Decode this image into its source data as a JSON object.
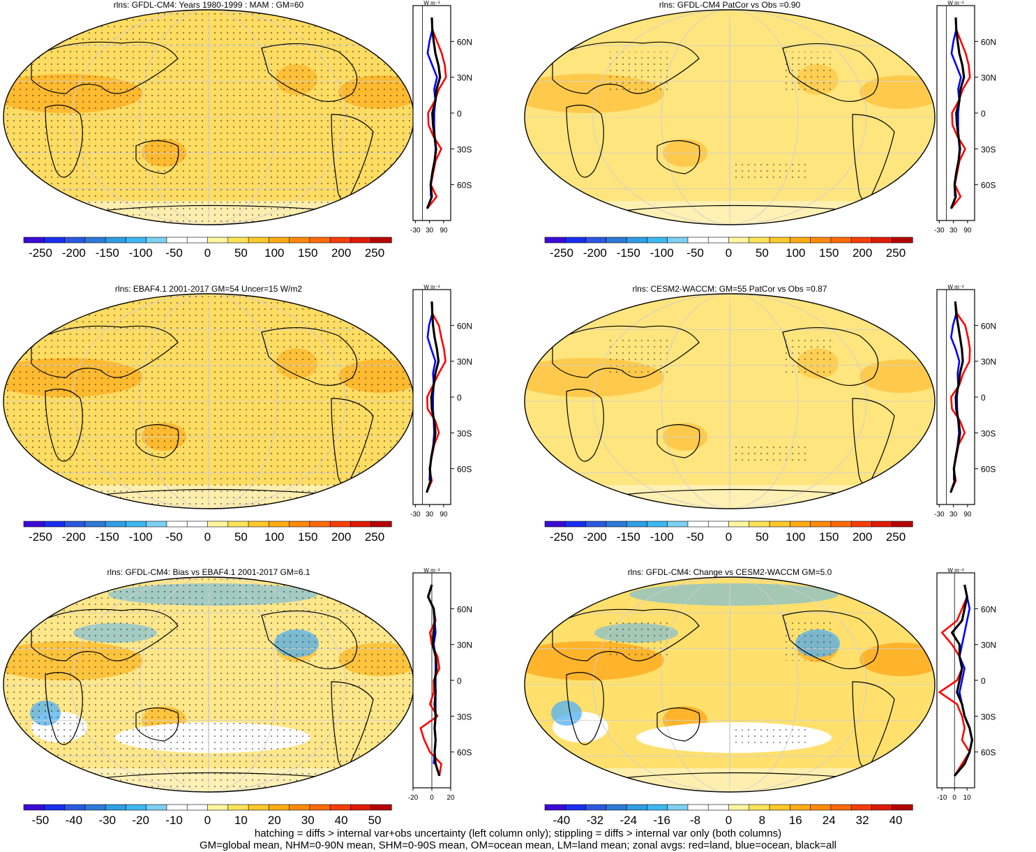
{
  "figure": {
    "footnotes": [
      "hatching = diffs > internal var+obs uncertainty (left column only); stippling = diffs > internal var only (both columns)",
      "GM=global mean, NHM=0-90N mean, SHM=0-90S mean, OM=ocean mean, LM=land mean; zonal avgs: red=land, blue=ocean, black=all"
    ],
    "zonal_units": "W m⁻²",
    "lat_labels": [
      "60N",
      "30N",
      "0",
      "30S",
      "60S"
    ],
    "colors": {
      "land": "#ff0000",
      "ocean": "#0000ff",
      "all": "#000000"
    }
  },
  "chart_data": [
    {
      "type": "heatmap",
      "title": "rlns: GFDL-CM4: Years 1980-1999 : MAM : GM=60",
      "colorbar_labels": [
        "-250",
        "-200",
        "-150",
        "-100",
        "-50",
        "0",
        "50",
        "100",
        "150",
        "200",
        "250"
      ],
      "colorbar_range": [
        -275,
        275
      ],
      "zonal": {
        "xlim": [
          -40,
          120
        ],
        "xticks": [
          -30,
          30,
          90
        ],
        "lat": [
          80,
          70,
          60,
          50,
          40,
          30,
          20,
          10,
          0,
          -10,
          -20,
          -30,
          -40,
          -50,
          -60,
          -70,
          -80
        ],
        "land": [
          40,
          42,
          62,
          82,
          95,
          100,
          70,
          52,
          24,
          26,
          48,
          80,
          56,
          46,
          36,
          60,
          20
        ],
        "ocean": [
          40,
          42,
          30,
          22,
          42,
          62,
          50,
          55,
          50,
          50,
          52,
          56,
          52,
          42,
          35,
          36,
          null
        ],
        "all": [
          40,
          42,
          48,
          55,
          68,
          75,
          60,
          55,
          42,
          45,
          52,
          58,
          52,
          42,
          35,
          40,
          20
        ]
      }
    },
    {
      "type": "heatmap",
      "title": "rlns: GFDL-CM4 PatCor vs Obs =0.90",
      "colorbar_labels": [
        "-250",
        "-200",
        "-150",
        "-100",
        "-50",
        "0",
        "50",
        "100",
        "150",
        "200",
        "250"
      ],
      "colorbar_range": [
        -275,
        275
      ],
      "zonal": {
        "xlim": [
          -40,
          120
        ],
        "xticks": [
          -30,
          30,
          90
        ],
        "lat": [
          80,
          70,
          60,
          50,
          40,
          30,
          20,
          10,
          0,
          -10,
          -20,
          -30,
          -40,
          -50,
          -60,
          -70,
          -80
        ],
        "land": [
          40,
          42,
          62,
          82,
          95,
          100,
          70,
          52,
          24,
          26,
          48,
          80,
          56,
          46,
          36,
          60,
          20
        ],
        "ocean": [
          40,
          42,
          30,
          22,
          42,
          62,
          50,
          55,
          50,
          50,
          52,
          56,
          52,
          42,
          35,
          36,
          null
        ],
        "all": [
          40,
          42,
          48,
          55,
          68,
          75,
          60,
          55,
          42,
          45,
          52,
          58,
          52,
          42,
          35,
          40,
          20
        ]
      }
    },
    {
      "type": "heatmap",
      "title": "rlns: EBAF4.1 2001-2017 GM=54 Uncer=15 W/m2",
      "colorbar_labels": [
        "-250",
        "-200",
        "-150",
        "-100",
        "-50",
        "0",
        "50",
        "100",
        "150",
        "200",
        "250"
      ],
      "colorbar_range": [
        -275,
        275
      ],
      "zonal": {
        "xlim": [
          -40,
          120
        ],
        "xticks": [
          -30,
          30,
          90
        ],
        "lat": [
          80,
          70,
          60,
          50,
          40,
          30,
          20,
          10,
          0,
          -10,
          -20,
          -30,
          -40,
          -50,
          -60,
          -70,
          -80
        ],
        "land": [
          40,
          42,
          70,
          80,
          92,
          98,
          70,
          45,
          20,
          22,
          55,
          70,
          50,
          40,
          30,
          40,
          18
        ],
        "ocean": [
          40,
          42,
          28,
          22,
          38,
          55,
          45,
          48,
          45,
          45,
          48,
          50,
          46,
          38,
          32,
          30,
          null
        ],
        "all": [
          40,
          42,
          45,
          52,
          62,
          68,
          55,
          48,
          38,
          40,
          50,
          55,
          48,
          38,
          32,
          35,
          18
        ]
      }
    },
    {
      "type": "heatmap",
      "title": "rlns: CESM2-WACCM: GM=55 PatCor vs Obs =0.87",
      "colorbar_labels": [
        "-250",
        "-200",
        "-150",
        "-100",
        "-50",
        "0",
        "50",
        "100",
        "150",
        "200",
        "250"
      ],
      "colorbar_range": [
        -275,
        275
      ],
      "zonal": {
        "xlim": [
          -40,
          120
        ],
        "xticks": [
          -30,
          30,
          90
        ],
        "lat": [
          80,
          70,
          60,
          50,
          40,
          30,
          20,
          10,
          0,
          -10,
          -20,
          -30,
          -40,
          -50,
          -60,
          -70,
          -80
        ],
        "land": [
          38,
          45,
          80,
          92,
          100,
          98,
          72,
          55,
          20,
          24,
          58,
          78,
          52,
          42,
          32,
          40,
          18
        ],
        "ocean": [
          38,
          42,
          28,
          20,
          40,
          55,
          48,
          50,
          45,
          46,
          50,
          54,
          48,
          40,
          32,
          32,
          null
        ],
        "all": [
          38,
          42,
          50,
          58,
          66,
          70,
          58,
          52,
          40,
          42,
          52,
          58,
          50,
          40,
          32,
          36,
          18
        ]
      }
    },
    {
      "type": "heatmap",
      "title": "rlns: GFDL-CM4: Bias vs EBAF4.1 2001-2017 GM=6.1",
      "colorbar_labels": [
        "-50",
        "-40",
        "-30",
        "-20",
        "-10",
        "0",
        "10",
        "20",
        "30",
        "40",
        "50"
      ],
      "colorbar_range": [
        -55,
        55
      ],
      "zonal": {
        "xlim": [
          -20,
          20
        ],
        "xticks": [
          -20,
          0,
          20
        ],
        "lat": [
          80,
          70,
          60,
          50,
          40,
          30,
          20,
          10,
          0,
          -10,
          -20,
          -30,
          -40,
          -50,
          -60,
          -70,
          -80
        ],
        "land": [
          0,
          -4,
          2,
          4,
          -2,
          0,
          6,
          8,
          2,
          2,
          -2,
          6,
          -12,
          -8,
          -2,
          10,
          8
        ],
        "ocean": [
          0,
          -4,
          2,
          3,
          4,
          2,
          4,
          4,
          4,
          4,
          4,
          4,
          3,
          4,
          3,
          2,
          null
        ],
        "all": [
          0,
          -4,
          2,
          3,
          2,
          1,
          4,
          5,
          3,
          4,
          3,
          4,
          3,
          4,
          3,
          4,
          8
        ]
      }
    },
    {
      "type": "heatmap",
      "title": "rlns: GFDL-CM4: Change vs CESM2-WACCM GM=5.0",
      "colorbar_labels": [
        "-40",
        "-32",
        "-24",
        "-16",
        "-8",
        "0",
        "8",
        "16",
        "24",
        "32",
        "40"
      ],
      "colorbar_range": [
        -44,
        44
      ],
      "zonal": {
        "xlim": [
          -14,
          16
        ],
        "xticks": [
          -10,
          0,
          10
        ],
        "lat": [
          80,
          70,
          60,
          50,
          40,
          30,
          20,
          10,
          0,
          -10,
          -20,
          -30,
          -40,
          -50,
          -60,
          -70,
          -80
        ],
        "land": [
          8,
          10,
          6,
          2,
          -10,
          -2,
          4,
          6,
          2,
          -12,
          2,
          6,
          8,
          6,
          12,
          6,
          0
        ],
        "ocean": [
          8,
          10,
          12,
          10,
          8,
          6,
          4,
          8,
          6,
          4,
          6,
          8,
          12,
          14,
          12,
          8,
          null
        ],
        "all": [
          8,
          10,
          8,
          6,
          -2,
          4,
          4,
          6,
          4,
          2,
          6,
          8,
          12,
          14,
          12,
          8,
          0
        ]
      }
    }
  ]
}
